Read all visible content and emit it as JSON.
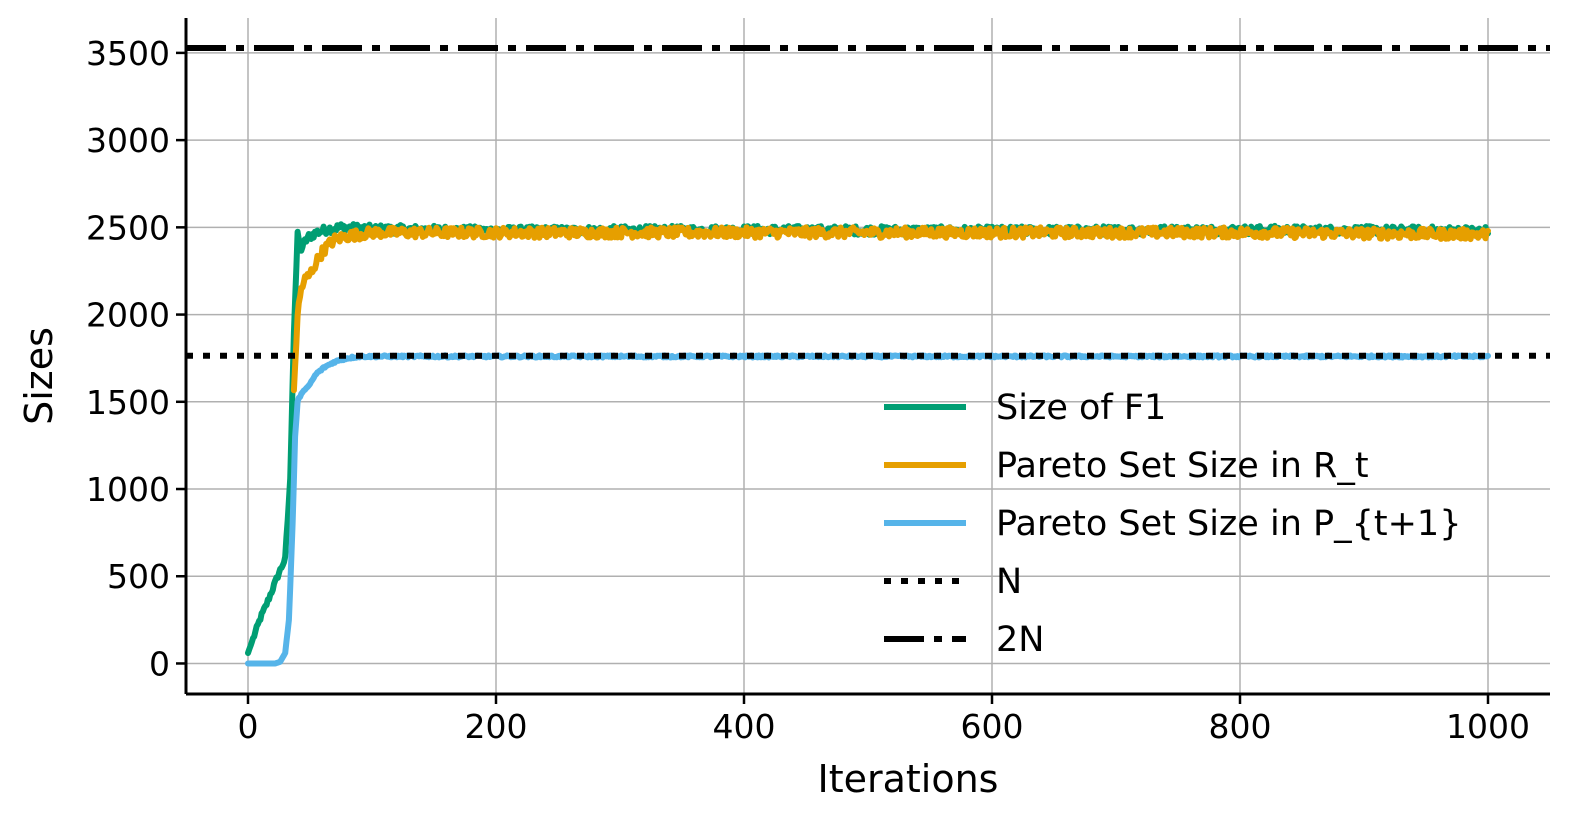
{
  "chart_data": {
    "type": "line",
    "xlabel": "Iterations",
    "ylabel": "Sizes",
    "xlim": [
      -50,
      1050
    ],
    "ylim": [
      -175,
      3700
    ],
    "xticks": [
      0,
      200,
      400,
      600,
      800,
      1000
    ],
    "yticks": [
      0,
      500,
      1000,
      1500,
      2000,
      2500,
      3000,
      3500
    ],
    "grid": true,
    "legend_position": "lower-right",
    "series": [
      {
        "name": "Size of F1",
        "color": "#009e73",
        "style": "solid",
        "x": [
          0,
          5,
          10,
          15,
          20,
          25,
          30,
          34,
          37,
          40,
          43,
          48,
          55,
          65,
          75,
          100,
          200,
          400,
          600,
          800,
          1000
        ],
        "y": [
          60,
          160,
          260,
          340,
          430,
          520,
          600,
          1050,
          1900,
          2460,
          2380,
          2440,
          2470,
          2490,
          2500,
          2490,
          2480,
          2485,
          2480,
          2485,
          2480
        ],
        "noise": 25
      },
      {
        "name": "Pareto Set Size in R_t",
        "color": "#e69f00",
        "style": "solid",
        "x": [
          37,
          40,
          43,
          46,
          50,
          55,
          60,
          65,
          70,
          80,
          90,
          100,
          200,
          400,
          600,
          800,
          1000
        ],
        "y": [
          1550,
          2000,
          2150,
          2200,
          2230,
          2300,
          2360,
          2400,
          2430,
          2450,
          2460,
          2470,
          2470,
          2470,
          2470,
          2470,
          2460
        ],
        "noise": 30
      },
      {
        "name": "Pareto Set Size in P_{t+1}",
        "color": "#56b4e9",
        "style": "solid",
        "x": [
          0,
          15,
          22,
          26,
          30,
          33,
          36,
          38,
          40,
          43,
          48,
          55,
          62,
          70,
          80,
          90,
          200,
          400,
          600,
          800,
          1000
        ],
        "y": [
          0,
          0,
          0,
          10,
          60,
          250,
          800,
          1300,
          1500,
          1550,
          1580,
          1660,
          1700,
          1730,
          1750,
          1760,
          1760,
          1760,
          1760,
          1760,
          1760
        ],
        "noise": 6
      },
      {
        "name": "N",
        "color": "#000000",
        "style": "dotted",
        "y": 1764
      },
      {
        "name": "2N",
        "color": "#000000",
        "style": "dashdot",
        "y": 3528
      }
    ]
  }
}
